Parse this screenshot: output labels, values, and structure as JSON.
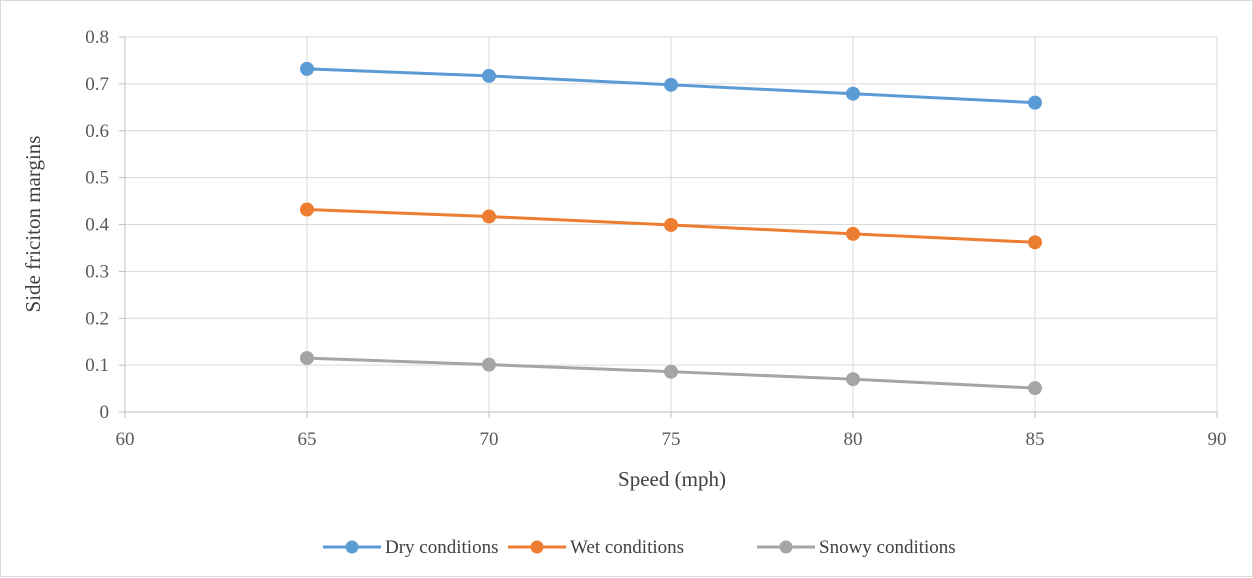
{
  "chart_data": {
    "type": "line",
    "xlabel": "Speed (mph)",
    "ylabel": "Side friciton margins",
    "xlim": [
      60,
      90
    ],
    "ylim": [
      0,
      0.8
    ],
    "xticks": [
      "60",
      "65",
      "70",
      "75",
      "80",
      "85",
      "90"
    ],
    "yticks": [
      "0",
      "0.1",
      "0.2",
      "0.3",
      "0.4",
      "0.5",
      "0.6",
      "0.7",
      "0.8"
    ],
    "grid": true,
    "legend_position": "bottom",
    "x": [
      65,
      70,
      75,
      80,
      85
    ],
    "series": [
      {
        "name": "Dry conditions",
        "color": "#5b9bd5",
        "values": [
          0.732,
          0.717,
          0.698,
          0.679,
          0.66
        ]
      },
      {
        "name": "Wet conditions",
        "color": "#ed7d31",
        "values": [
          0.432,
          0.417,
          0.399,
          0.38,
          0.362
        ]
      },
      {
        "name": "Snowy conditions",
        "color": "#a5a5a5",
        "values": [
          0.115,
          0.101,
          0.086,
          0.07,
          0.051
        ]
      }
    ]
  }
}
